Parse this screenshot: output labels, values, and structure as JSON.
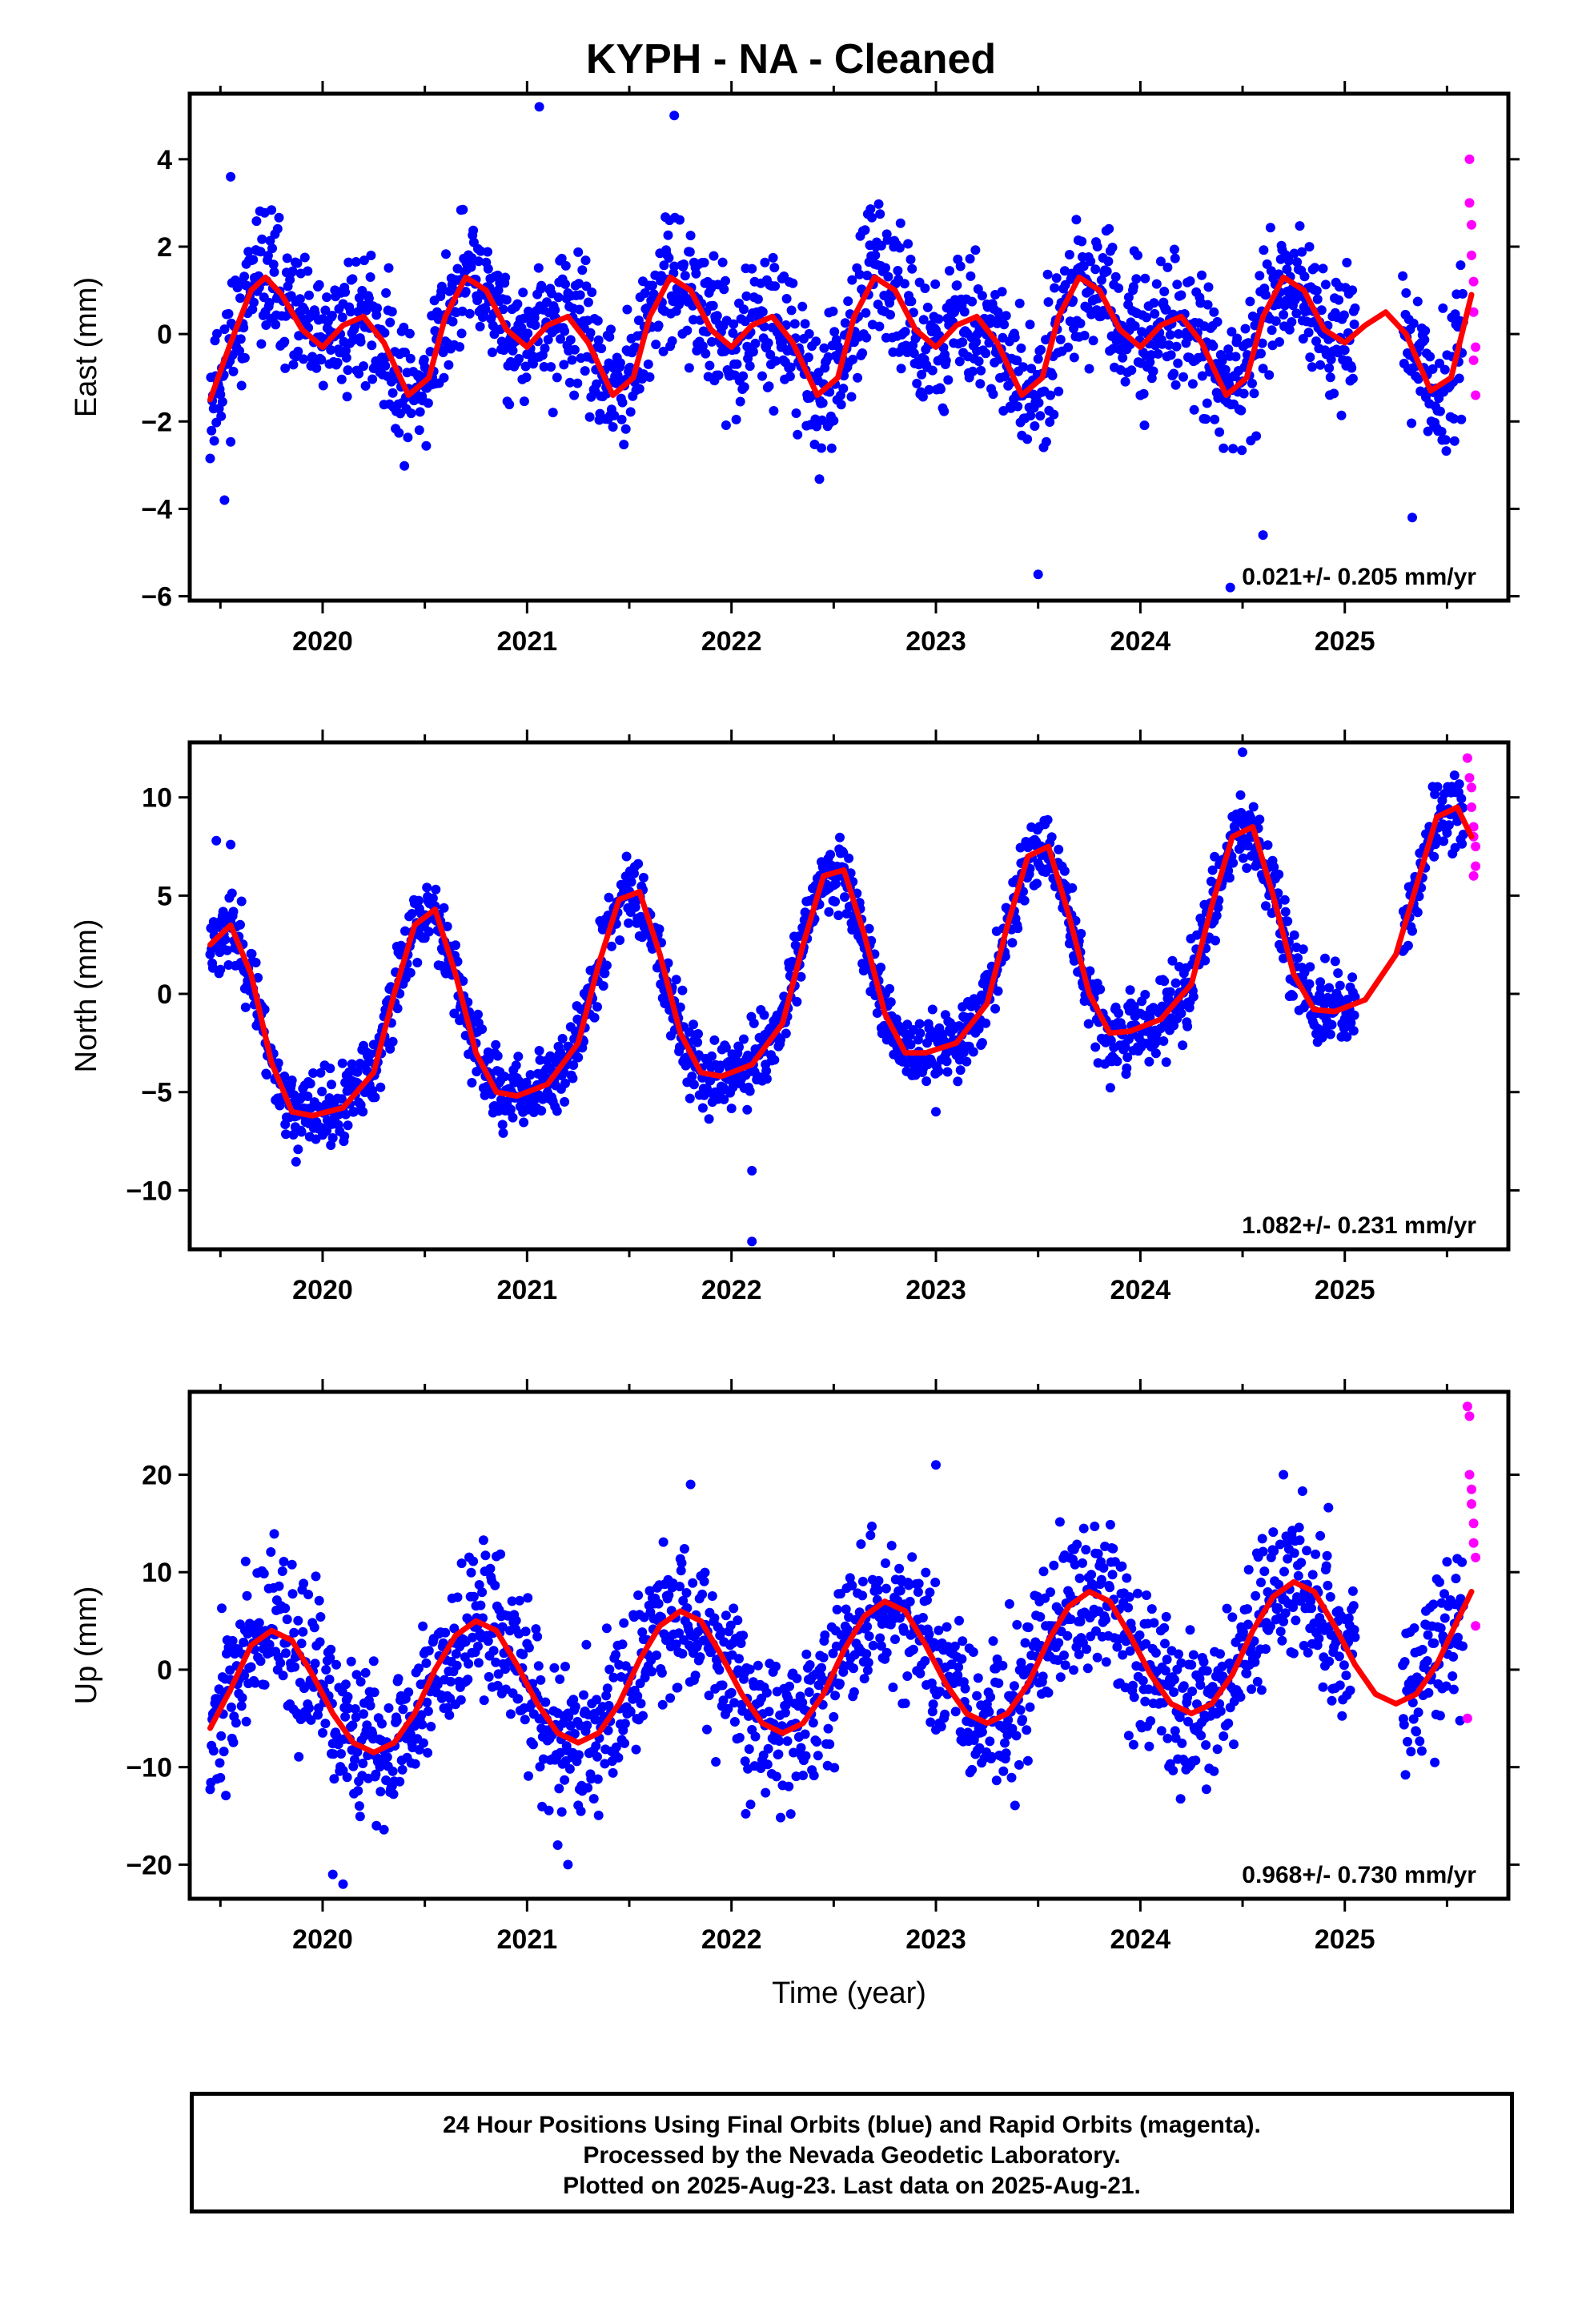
{
  "title": "KYPH  - NA - Cleaned",
  "footer": {
    "line1": "24 Hour Positions Using Final Orbits (blue) and Rapid Orbits (magenta).",
    "line2": "Processed by the Nevada Geodetic Laboratory.",
    "line3": "Plotted on 2025-Aug-23. Last data on 2025-Aug-21."
  },
  "colors": {
    "final": "#0000ff",
    "rapid": "#ff00ff",
    "model": "#ff0000"
  },
  "chart_data": [
    {
      "type": "scatter",
      "component": "East",
      "ylabel": "East (mm)",
      "xlabel": "",
      "rate_label": "0.021+/- 0.205 mm/yr",
      "xlim": [
        2019.35,
        2025.8
      ],
      "ylim": [
        -6.1,
        5.5
      ],
      "yticks": [
        -6,
        -4,
        -2,
        0,
        2,
        4
      ],
      "xticks": [
        2020,
        2021,
        2022,
        2023,
        2024,
        2025
      ],
      "grid": false,
      "model": {
        "name": "model",
        "x": [
          2019.45,
          2019.55,
          2019.65,
          2019.72,
          2019.8,
          2019.9,
          2020.0,
          2020.1,
          2020.2,
          2020.3,
          2020.42,
          2020.52,
          2020.6,
          2020.7,
          2020.8,
          2020.9,
          2021.0,
          2021.1,
          2021.2,
          2021.3,
          2021.42,
          2021.52,
          2021.6,
          2021.7,
          2021.8,
          2021.9,
          2022.0,
          2022.1,
          2022.2,
          2022.3,
          2022.42,
          2022.52,
          2022.6,
          2022.7,
          2022.8,
          2022.9,
          2023.0,
          2023.1,
          2023.2,
          2023.3,
          2023.42,
          2023.52,
          2023.6,
          2023.7,
          2023.8,
          2023.9,
          2024.0,
          2024.1,
          2024.2,
          2024.3,
          2024.42,
          2024.52,
          2024.6,
          2024.7,
          2024.8,
          2024.9,
          2025.0,
          2025.1,
          2025.2,
          2025.3,
          2025.42,
          2025.52,
          2025.62
        ],
        "y": [
          -1.5,
          -0.2,
          1.0,
          1.3,
          0.9,
          0.1,
          -0.3,
          0.2,
          0.4,
          -0.2,
          -1.4,
          -1.0,
          0.4,
          1.3,
          1.0,
          0.1,
          -0.3,
          0.2,
          0.4,
          -0.2,
          -1.4,
          -1.0,
          0.4,
          1.3,
          1.0,
          0.1,
          -0.3,
          0.2,
          0.4,
          -0.2,
          -1.4,
          -1.0,
          0.4,
          1.3,
          1.0,
          0.1,
          -0.3,
          0.2,
          0.4,
          -0.2,
          -1.4,
          -1.0,
          0.4,
          1.3,
          1.0,
          0.1,
          -0.3,
          0.2,
          0.4,
          -0.2,
          -1.4,
          -1.0,
          0.4,
          1.3,
          1.0,
          0.1,
          -0.2,
          0.2,
          0.5,
          0.0,
          -1.3,
          -1.0,
          0.9
        ]
      },
      "rapid": {
        "name": "rapid",
        "x": [
          2025.61,
          2025.61,
          2025.62,
          2025.62,
          2025.63,
          2025.63,
          2025.64,
          2025.64,
          2025.63
        ],
        "y": [
          4.0,
          3.0,
          2.5,
          1.8,
          1.2,
          0.5,
          -0.3,
          -1.4,
          -0.6
        ]
      },
      "scatter": {
        "name": "final",
        "seed": 11,
        "spread": 0.75,
        "outliers": [
          [
            2019.55,
            3.6
          ],
          [
            2019.52,
            -3.8
          ],
          [
            2021.06,
            5.2
          ],
          [
            2021.72,
            5.0
          ],
          [
            2023.5,
            -5.5
          ],
          [
            2024.44,
            -5.8
          ],
          [
            2024.6,
            -4.6
          ],
          [
            2025.33,
            -4.2
          ]
        ]
      }
    },
    {
      "type": "scatter",
      "component": "North",
      "ylabel": "North (mm)",
      "xlabel": "",
      "rate_label": "1.082+/- 0.231 mm/yr",
      "xlim": [
        2019.35,
        2025.8
      ],
      "ylim": [
        -13,
        12.8
      ],
      "yticks": [
        -10,
        -5,
        0,
        5,
        10
      ],
      "xticks": [
        2020,
        2021,
        2022,
        2023,
        2024,
        2025
      ],
      "grid": false,
      "model": {
        "name": "model",
        "x": [
          2019.45,
          2019.55,
          2019.65,
          2019.75,
          2019.85,
          2019.95,
          2020.1,
          2020.25,
          2020.35,
          2020.45,
          2020.55,
          2020.65,
          2020.75,
          2020.85,
          2020.95,
          2021.1,
          2021.25,
          2021.35,
          2021.45,
          2021.55,
          2021.65,
          2021.75,
          2021.85,
          2021.95,
          2022.1,
          2022.25,
          2022.35,
          2022.45,
          2022.55,
          2022.65,
          2022.75,
          2022.85,
          2022.95,
          2023.1,
          2023.25,
          2023.35,
          2023.45,
          2023.55,
          2023.65,
          2023.75,
          2023.85,
          2023.95,
          2024.1,
          2024.25,
          2024.35,
          2024.45,
          2024.55,
          2024.65,
          2024.75,
          2024.85,
          2024.95,
          2025.1,
          2025.25,
          2025.35,
          2025.45,
          2025.55,
          2025.62
        ],
        "y": [
          2.5,
          3.5,
          1.0,
          -3.5,
          -6.0,
          -6.2,
          -5.8,
          -4.0,
          0.0,
          3.5,
          4.3,
          1.0,
          -3.0,
          -5.0,
          -5.2,
          -4.6,
          -2.5,
          1.5,
          4.8,
          5.2,
          2.0,
          -2.0,
          -4.0,
          -4.2,
          -3.6,
          -1.5,
          2.5,
          6.0,
          6.3,
          3.0,
          -1.0,
          -3.0,
          -3.0,
          -2.5,
          -0.5,
          3.5,
          7.0,
          7.5,
          4.0,
          0.0,
          -2.0,
          -1.9,
          -1.3,
          0.5,
          4.5,
          8.0,
          8.5,
          5.0,
          1.0,
          -0.8,
          -0.9,
          -0.3,
          2.0,
          5.5,
          9.0,
          9.5,
          8.0
        ]
      },
      "rapid": {
        "name": "rapid",
        "x": [
          2025.6,
          2025.61,
          2025.62,
          2025.62,
          2025.63,
          2025.63,
          2025.64,
          2025.64,
          2025.63
        ],
        "y": [
          12.0,
          11.0,
          10.5,
          9.5,
          8.5,
          8.0,
          7.5,
          6.5,
          6.0
        ]
      },
      "scatter": {
        "name": "final",
        "seed": 23,
        "spread": 0.95,
        "outliers": [
          [
            2022.1,
            -9.0
          ],
          [
            2022.1,
            -12.6
          ],
          [
            2023.0,
            -6.0
          ],
          [
            2024.5,
            12.3
          ],
          [
            2019.48,
            7.8
          ],
          [
            2019.55,
            7.6
          ]
        ]
      }
    },
    {
      "type": "scatter",
      "component": "Up",
      "ylabel": "Up (mm)",
      "xlabel": "Time (year)",
      "rate_label": "0.968+/- 0.730 mm/yr",
      "xlim": [
        2019.35,
        2025.8
      ],
      "ylim": [
        -23.5,
        28.5
      ],
      "yticks": [
        -20,
        -10,
        0,
        10,
        20
      ],
      "xticks": [
        2020,
        2021,
        2022,
        2023,
        2024,
        2025
      ],
      "grid": false,
      "model": {
        "name": "model",
        "x": [
          2019.45,
          2019.55,
          2019.65,
          2019.75,
          2019.85,
          2019.95,
          2020.05,
          2020.15,
          2020.25,
          2020.35,
          2020.45,
          2020.55,
          2020.65,
          2020.75,
          2020.85,
          2020.95,
          2021.05,
          2021.15,
          2021.25,
          2021.35,
          2021.45,
          2021.55,
          2021.65,
          2021.75,
          2021.85,
          2021.95,
          2022.05,
          2022.15,
          2022.25,
          2022.35,
          2022.45,
          2022.55,
          2022.65,
          2022.75,
          2022.85,
          2022.95,
          2023.05,
          2023.15,
          2023.25,
          2023.35,
          2023.45,
          2023.55,
          2023.65,
          2023.75,
          2023.85,
          2023.95,
          2024.05,
          2024.15,
          2024.25,
          2024.35,
          2024.45,
          2024.55,
          2024.65,
          2024.75,
          2024.85,
          2024.95,
          2025.05,
          2025.15,
          2025.25,
          2025.35,
          2025.45,
          2025.55,
          2025.62
        ],
        "y": [
          -6.0,
          -2.0,
          2.5,
          4.0,
          3.0,
          -0.5,
          -4.5,
          -7.5,
          -8.5,
          -7.5,
          -4.5,
          0.0,
          3.5,
          5.0,
          4.0,
          0.5,
          -3.5,
          -6.5,
          -7.5,
          -6.5,
          -3.5,
          1.0,
          4.5,
          6.0,
          5.0,
          1.5,
          -2.5,
          -5.5,
          -6.5,
          -5.5,
          -2.5,
          2.0,
          5.5,
          7.0,
          6.0,
          2.5,
          -1.5,
          -4.5,
          -5.5,
          -4.5,
          -1.5,
          3.0,
          6.5,
          8.0,
          7.0,
          3.5,
          -0.5,
          -3.5,
          -4.5,
          -3.5,
          -0.5,
          4.0,
          7.5,
          9.0,
          8.0,
          4.5,
          0.5,
          -2.5,
          -3.5,
          -2.5,
          0.5,
          5.0,
          8.0
        ]
      },
      "rapid": {
        "name": "rapid",
        "x": [
          2025.6,
          2025.61,
          2025.61,
          2025.62,
          2025.62,
          2025.63,
          2025.63,
          2025.64,
          2025.64,
          2025.6
        ],
        "y": [
          27.0,
          26.0,
          20.0,
          18.5,
          17.0,
          15.0,
          13.0,
          11.5,
          4.5,
          -5.0
        ]
      },
      "scatter": {
        "name": "final",
        "seed": 37,
        "spread": 4.0,
        "outliers": [
          [
            2023.0,
            21.0
          ],
          [
            2021.8,
            19.0
          ],
          [
            2024.7,
            20.0
          ],
          [
            2020.05,
            -21.0
          ],
          [
            2020.1,
            -22.0
          ],
          [
            2021.2,
            -20.0
          ],
          [
            2021.15,
            -18.0
          ]
        ]
      }
    }
  ]
}
